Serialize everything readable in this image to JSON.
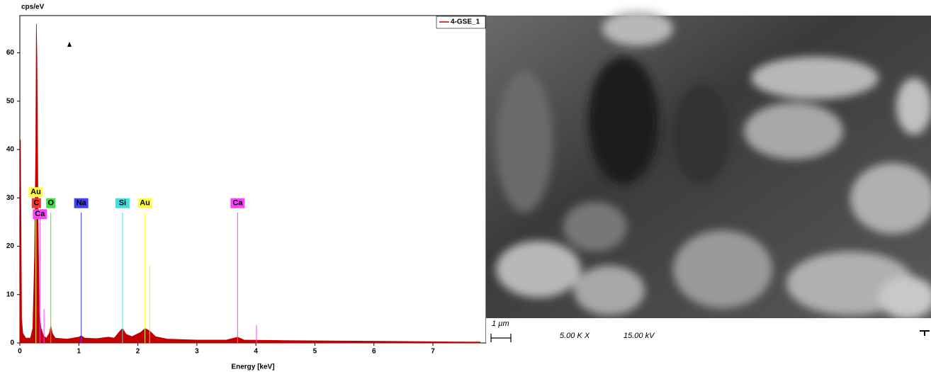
{
  "chart_data": {
    "type": "area",
    "y_label": "cps/eV",
    "x_label": "Energy [keV]",
    "xlim": [
      0,
      7.9
    ],
    "ylim": [
      0,
      67.7
    ],
    "xticks": [
      0,
      1,
      2,
      3,
      4,
      5,
      6,
      7
    ],
    "yticks": [
      0,
      10,
      20,
      30,
      40,
      50,
      60
    ],
    "x": [
      0,
      0.01,
      0.03,
      0.05,
      0.1,
      0.18,
      0.22,
      0.25,
      0.27,
      0.28,
      0.29,
      0.31,
      0.33,
      0.36,
      0.4,
      0.45,
      0.5,
      0.525,
      0.55,
      0.6,
      0.8,
      1.0,
      1.04,
      1.1,
      1.3,
      1.5,
      1.6,
      1.7,
      1.74,
      1.8,
      1.9,
      2.05,
      2.12,
      2.2,
      2.3,
      2.5,
      3.0,
      3.5,
      3.69,
      3.8,
      4.5,
      5.5,
      6.5,
      7.5,
      7.8
    ],
    "series": [
      {
        "name": "4-GSE_1",
        "color": "#c00000",
        "values": [
          0,
          42,
          5,
          2,
          1,
          1,
          3,
          18,
          40,
          66,
          59,
          25,
          6,
          3,
          1.5,
          1,
          2,
          3.5,
          2,
          1,
          0.8,
          1.2,
          1.5,
          1,
          0.9,
          1.2,
          1,
          2.5,
          3,
          1.8,
          1.3,
          2.2,
          3,
          2.5,
          1.3,
          0.8,
          0.6,
          0.6,
          1.2,
          0.6,
          0.5,
          0.4,
          0.3,
          0.2,
          0.2
        ]
      }
    ],
    "markers": [
      {
        "label": "Au",
        "energy": 0.27,
        "height": 27,
        "color": "#ffff40"
      },
      {
        "label": "C",
        "energy": 0.28,
        "height": 27,
        "color": "#ff3030"
      },
      {
        "label": "Ca",
        "energy": 0.34,
        "height": 27,
        "color": "#ff40ff"
      },
      {
        "label": "O",
        "energy": 0.525,
        "height": 27,
        "color": "#40e040"
      },
      {
        "label": "Na",
        "energy": 1.04,
        "height": 27,
        "color": "#4040ff"
      },
      {
        "label": "Si",
        "energy": 1.74,
        "height": 27,
        "color": "#40e0e0"
      },
      {
        "label": "Au",
        "energy": 2.12,
        "height": 27,
        "color": "#ffff40"
      },
      {
        "label": "Ca",
        "energy": 3.69,
        "height": 27,
        "color": "#ff40ff"
      }
    ],
    "lines": [
      {
        "energy": 0.41,
        "height": 7,
        "color": "#ff40ff"
      },
      {
        "energy": 2.2,
        "height": 16,
        "color": "#e8e840"
      },
      {
        "energy": 4.01,
        "height": 3.7,
        "color": "#ff40ff"
      }
    ]
  },
  "image": {
    "scale_label": "1 µm",
    "magnification": "5.00 K X",
    "voltage": "15.00 kV"
  }
}
